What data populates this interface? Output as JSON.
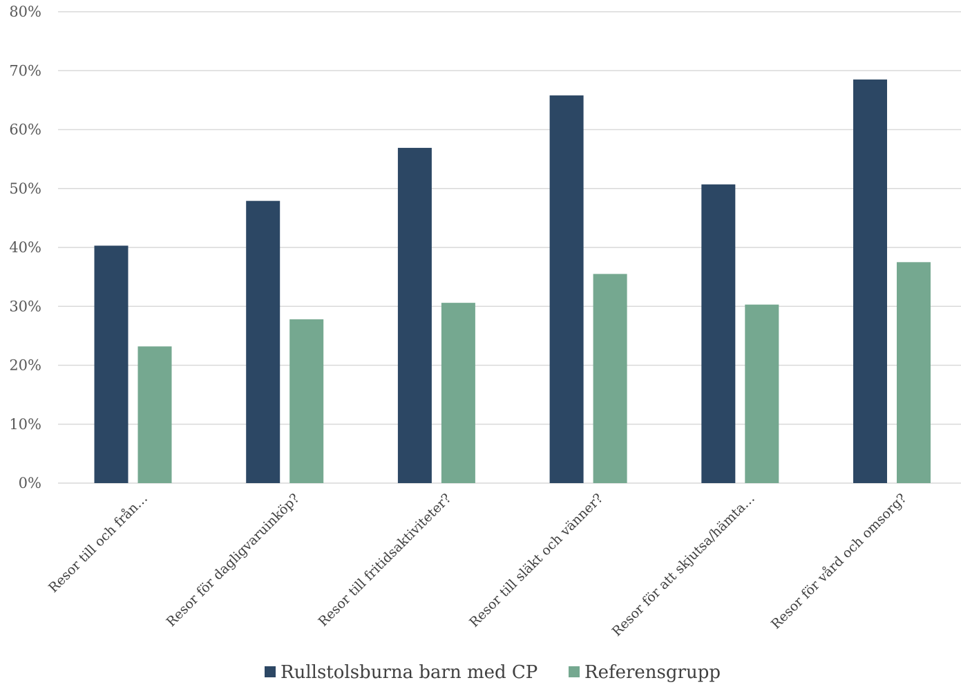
{
  "chart_data": {
    "type": "bar",
    "title": "",
    "xlabel": "",
    "ylabel": "",
    "ylim": [
      0,
      80
    ],
    "y_ticks": [
      0,
      10,
      20,
      30,
      40,
      50,
      60,
      70,
      80
    ],
    "y_tick_labels": [
      "0%",
      "10%",
      "20%",
      "30%",
      "40%",
      "50%",
      "60%",
      "70%",
      "80%"
    ],
    "grid": true,
    "legend_position": "bottom",
    "categories": [
      "Resor till och från…",
      "Resor för dagligvaruinköp?",
      "Resor till fritidsaktiviteter?",
      "Resor till släkt och vänner?",
      "Resor för att skjutsa/hämta…",
      "Resor för vård och omsorg?"
    ],
    "series": [
      {
        "name": "Rullstolsburna barn med CP",
        "color": "#2c4764",
        "values": [
          40.3,
          47.9,
          56.9,
          65.8,
          50.7,
          68.5
        ]
      },
      {
        "name": "Referensgrupp",
        "color": "#75a890",
        "values": [
          23.2,
          27.8,
          30.6,
          35.5,
          30.3,
          37.5
        ]
      }
    ]
  }
}
